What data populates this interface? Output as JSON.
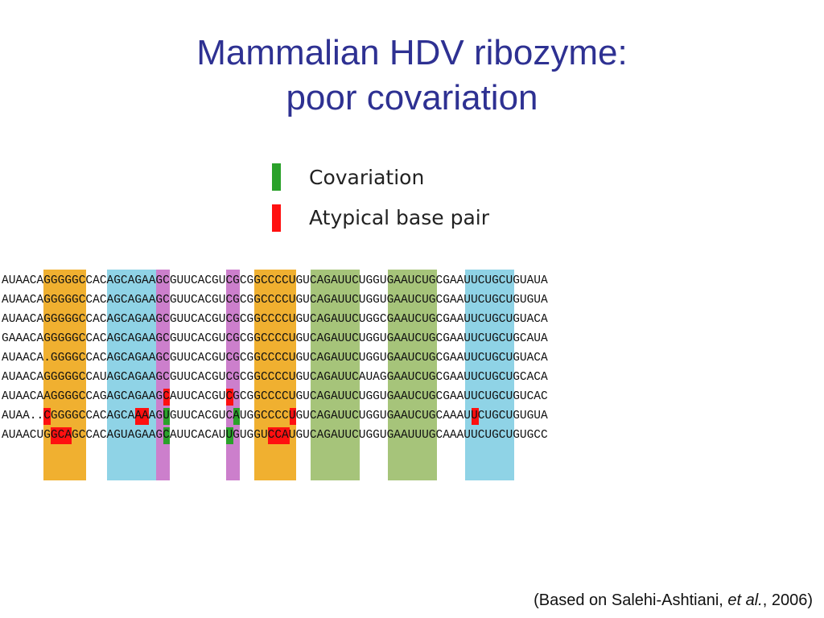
{
  "title": {
    "line1": "Mammalian HDV ribozyme:",
    "line2": "poor covariation"
  },
  "legend": [
    {
      "label": "Covariation",
      "color": "#2aa12a"
    },
    {
      "label": "Atypical base pair",
      "color": "#ff1010"
    }
  ],
  "alignment": {
    "sequences": [
      "AUAACAGGGGGCCACAGCAGAAGCGUUCACGUCGCGGCCCCUGUCAGAUUCUGGUGAAUCUGCGAAUUCUGCUGUAUA",
      "AUAACAGGGGGCCACAGCAGAAGCGUUCACGUCGCGGCCCCUGUCAGAUUCUGGUGAAUCUGCGAAUUCUGCUGUGUA",
      "AUAACAGGGGGCCACAGCAGAAGCGUUCACGUCGCGGCCCCUGUCAGAUUCUGGCGAAUCUGCGAAUUCUGCUGUACA",
      "GAAACAGGGGGCCACAGCAGAAGCGUUCACGUCGCGGCCCCUGUCAGAUUCUGGUGAAUCUGCGAAUUCUGCUGCAUA",
      "AUAACA.GGGGCCACAGCAGAAGCGUUCACGUCGCGGCCCCUGUCAGAUUCUGGUGAAUCUGCGAAUUCUGCUGUACA",
      "AUAACAGGGGGCCAUAGCAGAAGCGUUCACGUCGCGGCCCCUGUCAGAUUCAUAGGAAUCUGCGAAUUCUGCUGCACA",
      "AUAACAAGGGGCCAGAGCAGAAGCAUUCACGUCGCGGCCCCUGUCAGAUUCUGGUGAAUCUGCGAAUUCUGCUGUCAC",
      "AUAA..CGGGGCCACAGCAAAAGUGUUCACGUCAUGGCCCCUGUCAGAUUCUGGUGAAUCUGCAAAUUCUGCUGUGUA",
      "AUAACUGGCAGCCACAGUAGAAGCAUUCACAUUGUGGUCCAUGUCAGAUUCUGGUGAAUUUGCAAAUUCUGCUGUGCC"
    ],
    "helix_colors": {
      "P1": "#f0b030",
      "P2": "#8fd3e6",
      "P3": "#cc7fcc",
      "P4": "#a6c47a"
    },
    "cell_highlights": [
      {
        "row": 6,
        "col": 23,
        "type": "atypical"
      },
      {
        "row": 6,
        "col": 32,
        "type": "atypical"
      },
      {
        "row": 7,
        "col": 6,
        "type": "atypical"
      },
      {
        "row": 7,
        "col": 19,
        "type": "atypical"
      },
      {
        "row": 7,
        "col": 20,
        "type": "atypical"
      },
      {
        "row": 7,
        "col": 23,
        "type": "covariation"
      },
      {
        "row": 7,
        "col": 33,
        "type": "covariation"
      },
      {
        "row": 7,
        "col": 41,
        "type": "atypical"
      },
      {
        "row": 7,
        "col": 67,
        "type": "atypical"
      },
      {
        "row": 8,
        "col": 7,
        "type": "atypical"
      },
      {
        "row": 8,
        "col": 8,
        "type": "atypical"
      },
      {
        "row": 8,
        "col": 9,
        "type": "atypical"
      },
      {
        "row": 8,
        "col": 23,
        "type": "covariation"
      },
      {
        "row": 8,
        "col": 32,
        "type": "covariation"
      },
      {
        "row": 8,
        "col": 38,
        "type": "atypical"
      },
      {
        "row": 8,
        "col": 39,
        "type": "atypical"
      },
      {
        "row": 8,
        "col": 40,
        "type": "atypical"
      }
    ]
  },
  "citation": {
    "prefix": "(Based on Salehi-Ashtiani, ",
    "italic": "et al.",
    "suffix": ", 2006)"
  }
}
